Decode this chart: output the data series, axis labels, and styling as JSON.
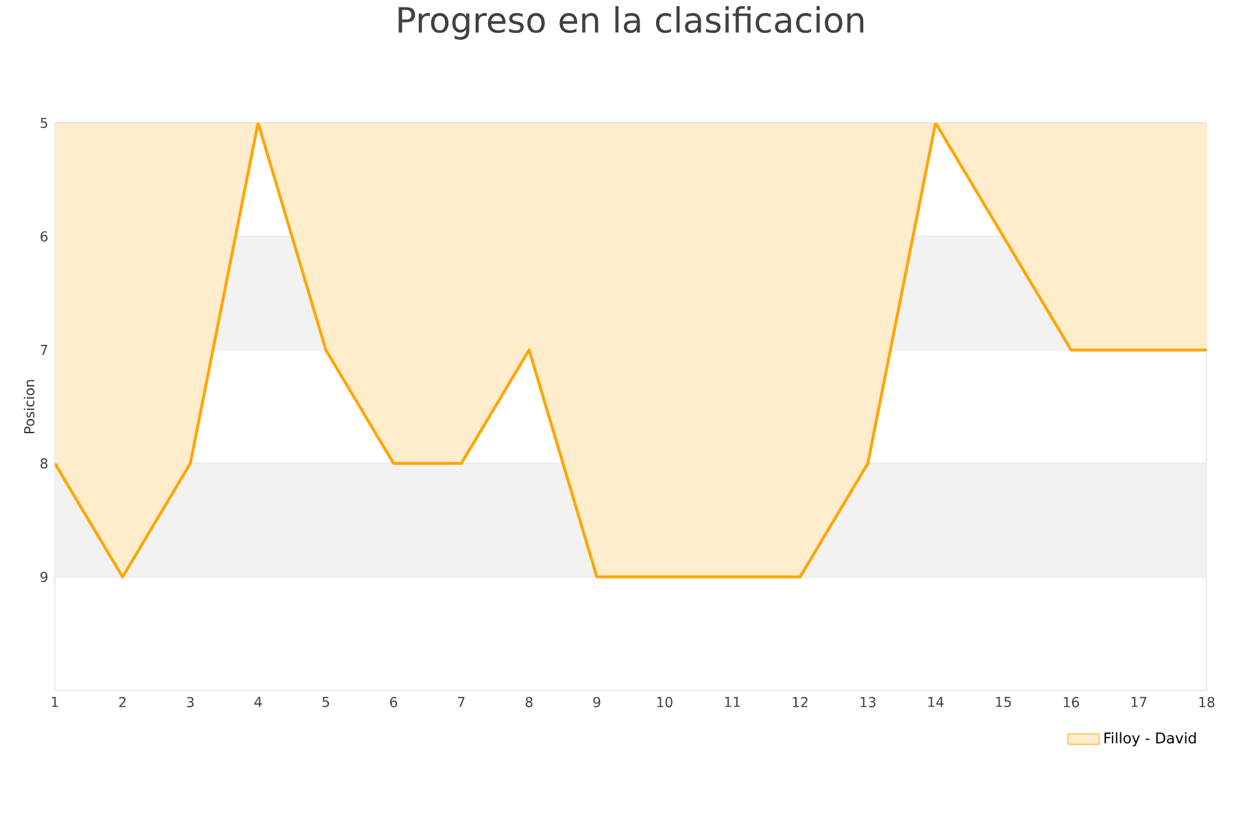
{
  "chart_data": {
    "type": "area",
    "title": "Progreso en la clasificacion",
    "ylabel": "Posicion",
    "x": [
      1,
      2,
      3,
      4,
      5,
      6,
      7,
      8,
      9,
      10,
      11,
      12,
      13,
      14,
      15,
      16,
      17,
      18
    ],
    "series": [
      {
        "name": "Filloy - David",
        "color": "#ffa500",
        "values": [
          8,
          9,
          8,
          5,
          7,
          8,
          8,
          7,
          9,
          9,
          9,
          9,
          8,
          5,
          6,
          7,
          7,
          7
        ]
      }
    ],
    "xlim": [
      1,
      18
    ],
    "xticks": [
      1,
      2,
      3,
      4,
      5,
      6,
      7,
      8,
      9,
      10,
      11,
      12,
      13,
      14,
      15,
      16,
      17,
      18
    ],
    "ylim": [
      10,
      5
    ],
    "yticks": [
      5,
      6,
      7,
      8,
      9
    ],
    "bands": [
      {
        "axis": "y",
        "from": 6,
        "to": 7,
        "color": "#f2f2f2"
      },
      {
        "axis": "y",
        "from": 8,
        "to": 9,
        "color": "#f2f2f2"
      }
    ],
    "grid": "y",
    "legend": "bottom right",
    "marker": "none",
    "line_style": "solid"
  }
}
